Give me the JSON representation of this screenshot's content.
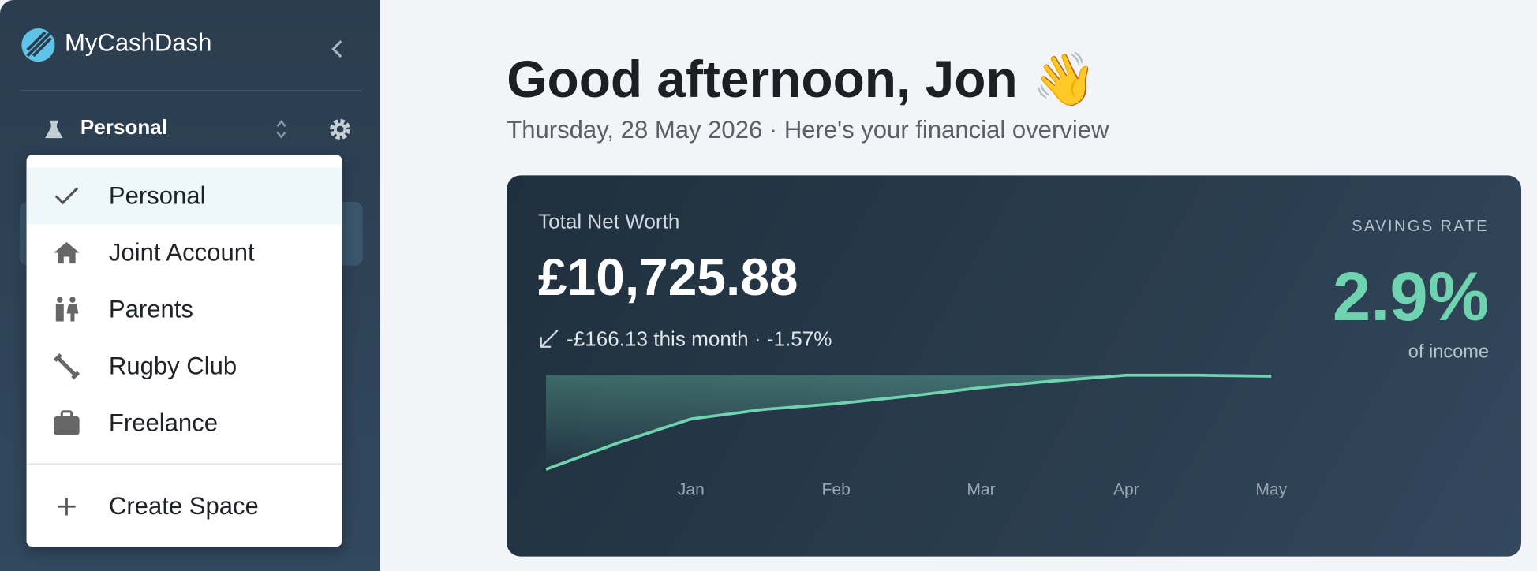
{
  "app": {
    "name": "MyCashDash",
    "current_space": "Personal"
  },
  "space_menu": {
    "items": [
      "Personal",
      "Joint Account",
      "Parents",
      "Rugby Club",
      "Freelance"
    ],
    "create": "Create Space"
  },
  "header": {
    "title": "Good afternoon, Jon 👋",
    "subtitle": "Thursday, 28 May 2026 · Here's your financial overview"
  },
  "card": {
    "label": "Total Net Worth",
    "value": "£10,725.88",
    "change": "-£166.13 this month · -1.57%",
    "savings_label": "SAVINGS RATE",
    "savings_value": "2.9%",
    "savings_note": "of income"
  },
  "chart_data": {
    "type": "area",
    "color": "#6fd3b0",
    "categories": [
      null,
      null,
      "Jan",
      null,
      "Feb",
      null,
      "Mar",
      null,
      "Apr",
      null,
      "May"
    ],
    "values": [
      1,
      29,
      54,
      64,
      70,
      78,
      87,
      94,
      100,
      100,
      99
    ],
    "ylim": [
      0,
      100
    ]
  }
}
